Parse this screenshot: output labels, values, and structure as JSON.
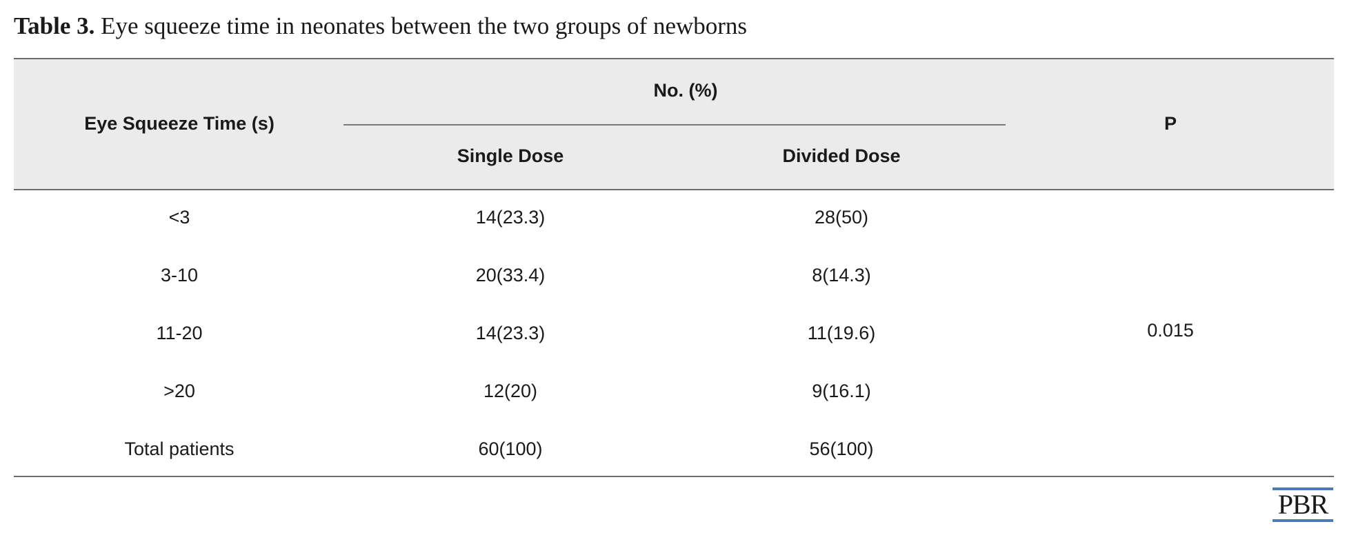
{
  "caption": {
    "label": "Table 3.",
    "text": " Eye squeeze time in neonates between the two groups of newborns"
  },
  "table": {
    "headers": {
      "eye_squeeze": "Eye Squeeze Time (s)",
      "group": "No. (%)",
      "single": "Single Dose",
      "divided": "Divided Dose",
      "p": "P"
    },
    "rows": [
      {
        "eye": "<3",
        "single": "14(23.3)",
        "divided": "28(50)"
      },
      {
        "eye": "3-10",
        "single": "20(33.4)",
        "divided": "8(14.3)"
      },
      {
        "eye": "11-20",
        "single": "14(23.3)",
        "divided": "11(19.6)"
      },
      {
        "eye": ">20",
        "single": "12(20)",
        "divided": "9(16.1)"
      },
      {
        "eye": "Total patients",
        "single": "60(100)",
        "divided": "56(100)"
      }
    ],
    "p_value": "0.015"
  },
  "logo": {
    "text": "PBR",
    "accent_color": "#4a7ab8"
  }
}
